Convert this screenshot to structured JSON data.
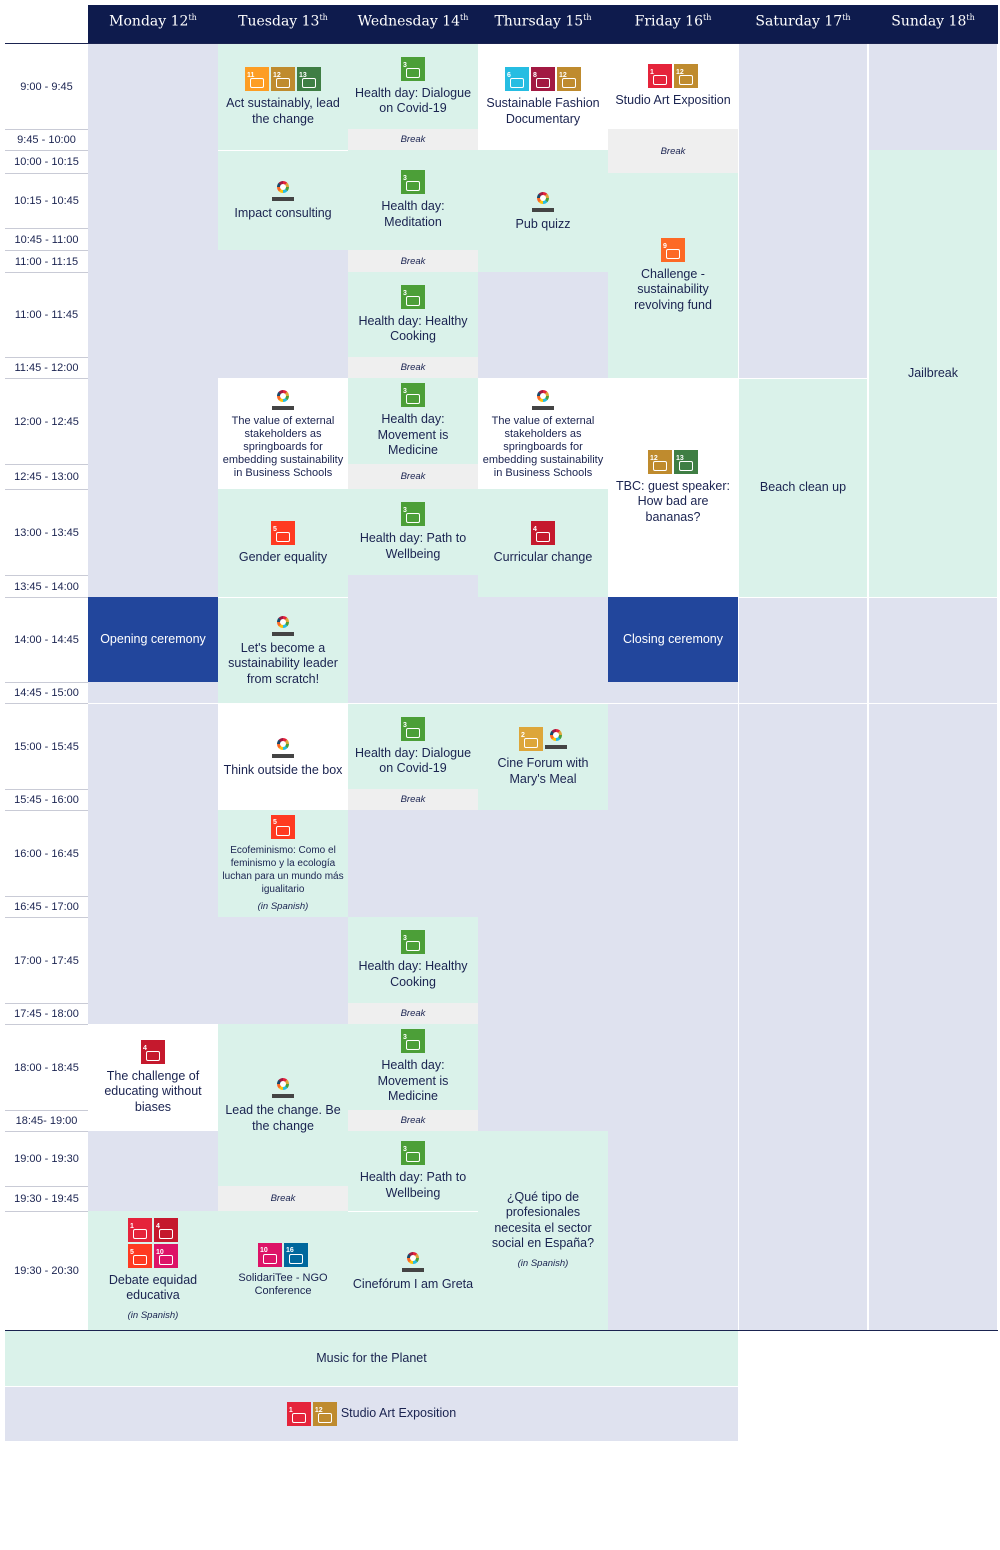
{
  "days": [
    {
      "name": "Monday 12",
      "sup": "th"
    },
    {
      "name": "Tuesday 13",
      "sup": "th"
    },
    {
      "name": "Wednesday 14",
      "sup": "th"
    },
    {
      "name": "Thursday 15",
      "sup": "th"
    },
    {
      "name": "Friday 16",
      "sup": "th"
    },
    {
      "name": "Saturday 17",
      "sup": "th"
    },
    {
      "name": "Sunday 18",
      "sup": "th"
    }
  ],
  "times": [
    "9:00 - 9:45",
    "9:45 - 10:00",
    "10:00 - 10:15",
    "10:15 - 10:45",
    "10:45 - 11:00",
    "11:00 - 11:15",
    "11:00 - 11:45",
    "11:45 - 12:00",
    "12:00 - 12:45",
    "12:45 - 13:00",
    "13:00 - 13:45",
    "13:45 - 14:00",
    "14:00 - 14:45",
    "14:45 - 15:00",
    "15:00 - 15:45",
    "15:45 - 16:00",
    "16:00 - 16:45",
    "16:45 - 17:00",
    "17:00 - 17:45",
    "17:45 - 18:00",
    "18:00 - 18:45",
    "18:45- 19:00",
    "19:00 - 19:30",
    "19:30 - 19:45",
    "19:30 - 20:30"
  ],
  "break_label": "Break",
  "in_spanish": "(in Spanish)",
  "events": {
    "act_sustainably": "Act sustainably, lead the change",
    "health_covid": "Health day: Dialogue on Covid-19",
    "fashion_doc": "Sustainable Fashion Documentary",
    "studio_art": "Studio Art Exposition",
    "impact_consulting": "Impact consulting",
    "health_meditation": "Health day: Meditation",
    "pub_quiz": "Pub quizz",
    "challenge_fund": "Challenge - sustainability revolving fund",
    "health_cooking": "Health day: Healthy Cooking",
    "jailbreak": "Jailbreak",
    "external_stakeholders": "The value of external stakeholders as springboards for embedding sustainability in Business Schools",
    "health_movement": "Health day: Movement is Medicine",
    "tbc_bananas": "TBC: guest speaker: How bad are bananas?",
    "beach_cleanup": "Beach clean up",
    "gender_equality": "Gender equality",
    "health_wellbeing": "Health day: Path to Wellbeing",
    "curricular_change": "Curricular change",
    "opening": "Opening ceremony",
    "leader_scratch": "Let's become a sustainability leader from scratch!",
    "closing": "Closing ceremony",
    "think_outside": "Think outside the box",
    "cine_forum_marys": "Cine Forum with Mary's Meal",
    "ecofeminismo": "Ecofeminismo: Como el feminismo y la ecología luchan para un mundo más igualitario",
    "challenge_educating": "The challenge of educating without biases",
    "lead_change": "Lead the change. Be the change",
    "que_tipo": "¿Qué tipo de profesionales necesita el sector social en España?",
    "debate_equidad": "Debate equidad educativa",
    "solidaritee": "SolidariTee - NGO Conference",
    "cineforum_greta": "Cinefórum I am Greta",
    "music_planet": "Music for the Planet",
    "studio_art_bottom": "Studio Art Exposition"
  },
  "colors": {
    "header": "#0e1b4d",
    "green": "#daf2ea",
    "blue": "#dfe2ef",
    "navy": "#22469c",
    "break": "#efefef"
  }
}
